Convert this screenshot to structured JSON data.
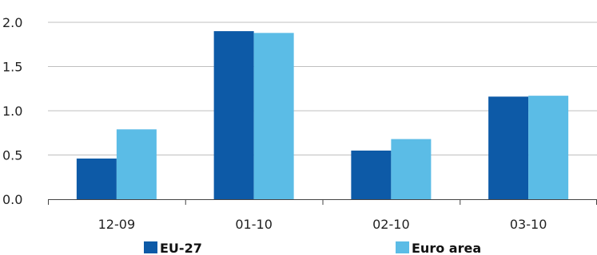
{
  "chart_data": {
    "type": "bar",
    "categories": [
      "12-09",
      "01-10",
      "02-10",
      "03-10"
    ],
    "series": [
      {
        "name": "EU-27",
        "color": "#0d5aa7",
        "values": [
          0.46,
          1.9,
          0.55,
          1.16
        ]
      },
      {
        "name": "Euro area",
        "color": "#5bbce6",
        "values": [
          0.79,
          1.88,
          0.68,
          1.17
        ]
      }
    ],
    "y_ticks": [
      "0.0",
      "0.5",
      "1.0",
      "1.5",
      "2.0"
    ],
    "ylim": [
      0,
      2.0
    ],
    "grid": true,
    "legend_position": "bottom",
    "title": "",
    "xlabel": "",
    "ylabel": ""
  }
}
